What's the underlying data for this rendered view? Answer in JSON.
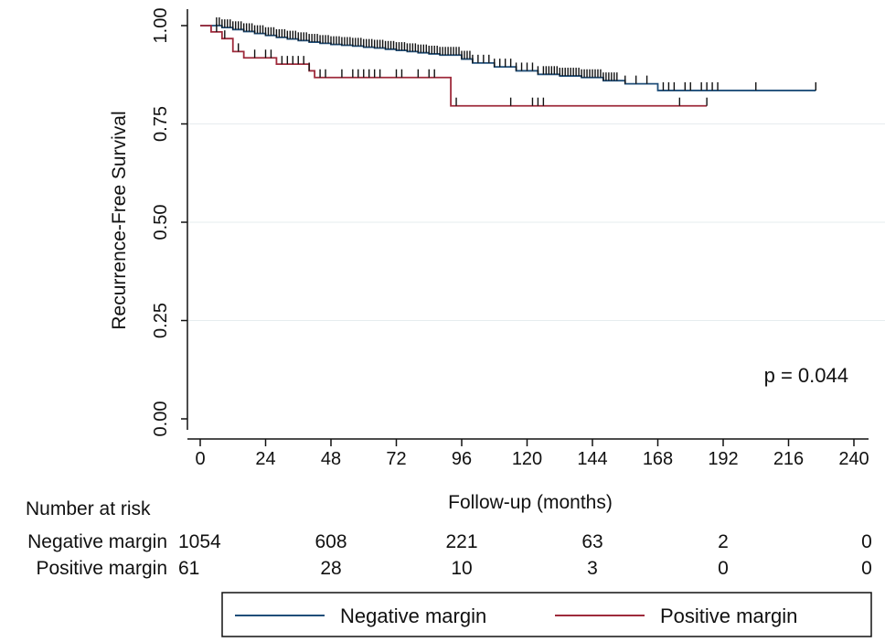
{
  "chart_data": {
    "type": "line",
    "subtype": "kaplan-meier",
    "title": "",
    "xlabel": "Follow-up (months)",
    "ylabel": "Recurrence-Free Survival",
    "xlim": [
      0,
      240
    ],
    "ylim": [
      0,
      1
    ],
    "x_ticks": [
      0,
      24,
      48,
      72,
      96,
      120,
      144,
      168,
      192,
      216,
      240
    ],
    "y_ticks": [
      0.0,
      0.25,
      0.5,
      0.75,
      1.0
    ],
    "x_tick_labels": [
      "0",
      "24",
      "48",
      "72",
      "96",
      "120",
      "144",
      "168",
      "192",
      "216",
      "240"
    ],
    "y_tick_labels": [
      "0.00",
      "0.25",
      "0.50",
      "0.75",
      "1.00"
    ],
    "grid": "horizontal",
    "annotation": "p = 0.044",
    "series": [
      {
        "name": "Negative margin",
        "color": "#1f4e79",
        "steps": [
          [
            0,
            1.0
          ],
          [
            6,
            1.0
          ],
          [
            8,
            0.995
          ],
          [
            12,
            0.99
          ],
          [
            16,
            0.985
          ],
          [
            20,
            0.98
          ],
          [
            24,
            0.975
          ],
          [
            28,
            0.97
          ],
          [
            32,
            0.966
          ],
          [
            36,
            0.962
          ],
          [
            40,
            0.958
          ],
          [
            44,
            0.955
          ],
          [
            48,
            0.952
          ],
          [
            52,
            0.95
          ],
          [
            56,
            0.948
          ],
          [
            60,
            0.945
          ],
          [
            64,
            0.943
          ],
          [
            68,
            0.94
          ],
          [
            72,
            0.937
          ],
          [
            76,
            0.934
          ],
          [
            80,
            0.931
          ],
          [
            84,
            0.928
          ],
          [
            88,
            0.925
          ],
          [
            96,
            0.915
          ],
          [
            100,
            0.905
          ],
          [
            108,
            0.895
          ],
          [
            116,
            0.885
          ],
          [
            124,
            0.876
          ],
          [
            132,
            0.872
          ],
          [
            140,
            0.868
          ],
          [
            148,
            0.86
          ],
          [
            156,
            0.852
          ],
          [
            168,
            0.835
          ],
          [
            226,
            0.835
          ]
        ],
        "censor_times": [
          6,
          7,
          8,
          9,
          10,
          11,
          12,
          13,
          14,
          15,
          16,
          17,
          18,
          19,
          20,
          21,
          22,
          23,
          24,
          25,
          26,
          27,
          28,
          29,
          30,
          31,
          32,
          33,
          34,
          35,
          36,
          37,
          38,
          39,
          40,
          41,
          42,
          43,
          44,
          45,
          46,
          47,
          48,
          49,
          50,
          51,
          52,
          53,
          54,
          55,
          56,
          57,
          58,
          59,
          60,
          61,
          62,
          63,
          64,
          65,
          66,
          67,
          68,
          69,
          70,
          71,
          72,
          73,
          74,
          75,
          76,
          77,
          78,
          79,
          80,
          81,
          82,
          83,
          84,
          85,
          86,
          87,
          88,
          89,
          90,
          91,
          92,
          93,
          94,
          95,
          96,
          97,
          98,
          99,
          100,
          102,
          104,
          106,
          108,
          110,
          112,
          114,
          116,
          118,
          120,
          122,
          124,
          126,
          127,
          128,
          129,
          130,
          131,
          132,
          133,
          134,
          135,
          136,
          137,
          138,
          139,
          140,
          141,
          142,
          143,
          144,
          145,
          146,
          147,
          148,
          149,
          150,
          151,
          152,
          153,
          156,
          160,
          164,
          170,
          172,
          174,
          178,
          180,
          184,
          186,
          188,
          190,
          204,
          226
        ]
      },
      {
        "name": "Positive margin",
        "color": "#9e2a3b",
        "steps": [
          [
            0,
            1.0
          ],
          [
            4,
            0.984
          ],
          [
            8,
            0.967
          ],
          [
            12,
            0.934
          ],
          [
            16,
            0.918
          ],
          [
            28,
            0.902
          ],
          [
            40,
            0.885
          ],
          [
            42,
            0.868
          ],
          [
            92,
            0.868
          ],
          [
            92,
            0.796
          ],
          [
            186,
            0.796
          ]
        ],
        "censor_times": [
          6,
          9,
          14,
          20,
          24,
          26,
          30,
          32,
          34,
          36,
          38,
          40,
          44,
          46,
          52,
          56,
          58,
          60,
          62,
          64,
          66,
          72,
          74,
          80,
          84,
          86,
          94,
          114,
          122,
          124,
          126,
          176,
          186
        ]
      }
    ],
    "risk_table": {
      "title": "Number at risk",
      "time_points": [
        0,
        48,
        96,
        144,
        192,
        240
      ],
      "rows": [
        {
          "label": "Negative margin",
          "values": [
            "1054",
            "608",
            "221",
            "63",
            "2",
            "0"
          ]
        },
        {
          "label": "Positive margin",
          "values": [
            "61",
            "28",
            "10",
            "3",
            "0",
            "0"
          ]
        }
      ]
    },
    "legend": {
      "position": "bottom",
      "entries": [
        {
          "label": "Negative margin",
          "color": "#1f4e79"
        },
        {
          "label": "Positive margin",
          "color": "#9e2a3b"
        }
      ]
    }
  }
}
